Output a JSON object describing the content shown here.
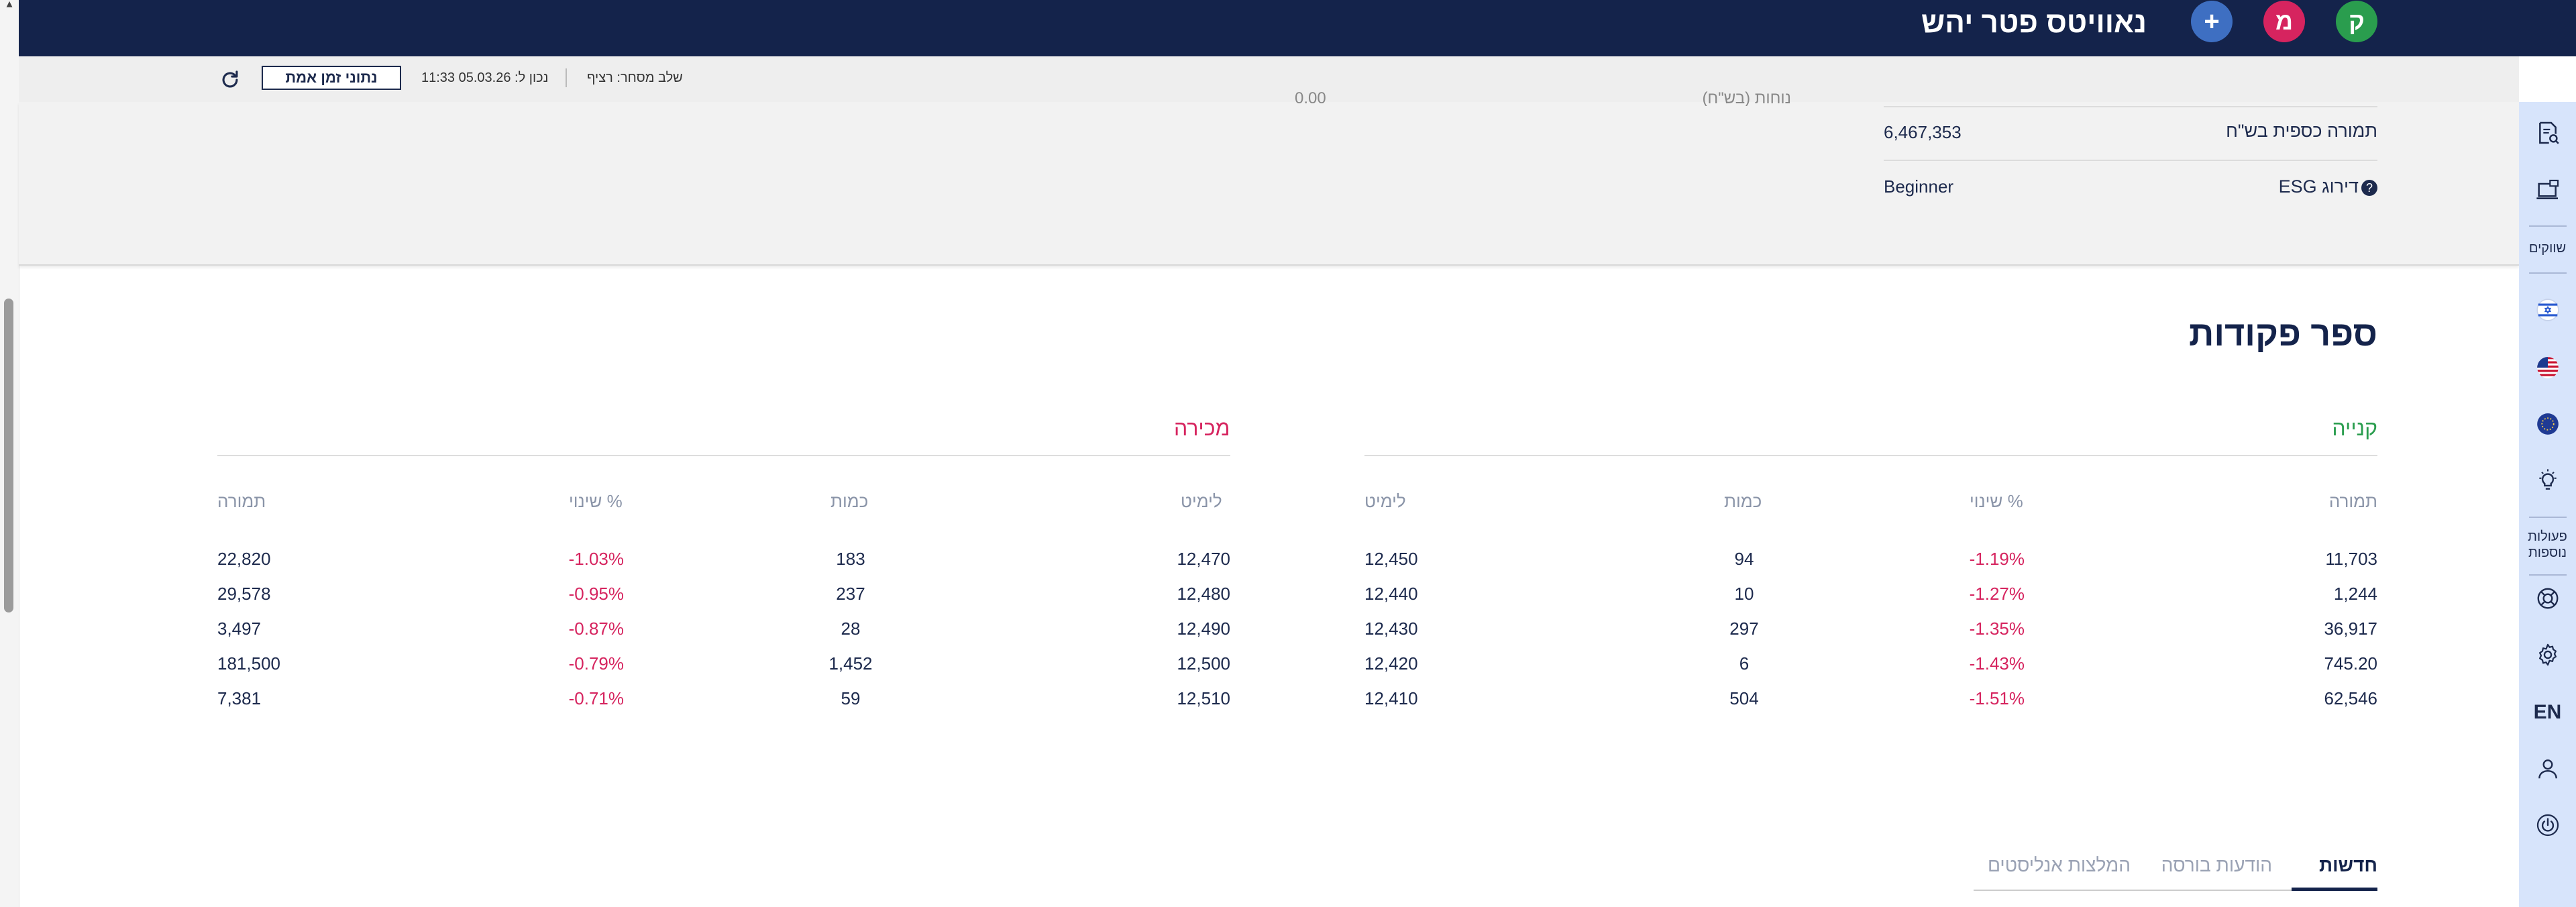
{
  "header": {
    "app_title": "נאוויטס פטר יהש",
    "circle_k": "ק",
    "circle_m": "מ",
    "circle_plus": "+"
  },
  "status_bar": {
    "realtime_button": "נתוני זמן אמת",
    "updated_at": "נכון ל: 05.03.26 11:33",
    "trade_phase": "שלב מסחר: רציף"
  },
  "info_panel": {
    "cut_label": "נוחות (בש\"ח)",
    "cut_value": "0.00",
    "rows": [
      {
        "label": "תמורה כספית בש\"ח",
        "value": "6,467,353"
      },
      {
        "label": "דירוג ESG",
        "value": "Beginner"
      }
    ]
  },
  "order_book": {
    "title": "ספר פקודות",
    "buy": {
      "label": "קנייה",
      "headers": {
        "turnover": "תמורה",
        "change": "% שינוי",
        "quantity": "כמות",
        "limit": "לימיט"
      },
      "rows": [
        {
          "turnover": "11,703",
          "change": "-1.19%",
          "quantity": "94",
          "limit": "12,450"
        },
        {
          "turnover": "1,244",
          "change": "-1.27%",
          "quantity": "10",
          "limit": "12,440"
        },
        {
          "turnover": "36,917",
          "change": "-1.35%",
          "quantity": "297",
          "limit": "12,430"
        },
        {
          "turnover": "745.20",
          "change": "-1.43%",
          "quantity": "6",
          "limit": "12,420"
        },
        {
          "turnover": "62,546",
          "change": "-1.51%",
          "quantity": "504",
          "limit": "12,410"
        }
      ]
    },
    "sell": {
      "label": "מכירה",
      "headers": {
        "limit": "לימיט",
        "quantity": "כמות",
        "change": "% שינוי",
        "turnover": "תמורה"
      },
      "rows": [
        {
          "limit": "12,470",
          "quantity": "183",
          "change": "-1.03%",
          "turnover": "22,820"
        },
        {
          "limit": "12,480",
          "quantity": "237",
          "change": "-0.95%",
          "turnover": "29,578"
        },
        {
          "limit": "12,490",
          "quantity": "28",
          "change": "-0.87%",
          "turnover": "3,497"
        },
        {
          "limit": "12,500",
          "quantity": "1,452",
          "change": "-0.79%",
          "turnover": "181,500"
        },
        {
          "limit": "12,510",
          "quantity": "59",
          "change": "-0.71%",
          "turnover": "7,381"
        }
      ]
    }
  },
  "tabs": [
    "חדשות",
    "הודעות בורסה",
    "המלצות אנליסטים"
  ],
  "sidebar": {
    "markets_label": "שווקים",
    "more_actions_label": "פעולות נוספות",
    "language": "EN"
  },
  "colors": {
    "header_bg": "#14234b",
    "buy_green": "#2a9d4e",
    "sell_red": "#d6245f",
    "sidebar_bg": "#d7e4fb"
  }
}
